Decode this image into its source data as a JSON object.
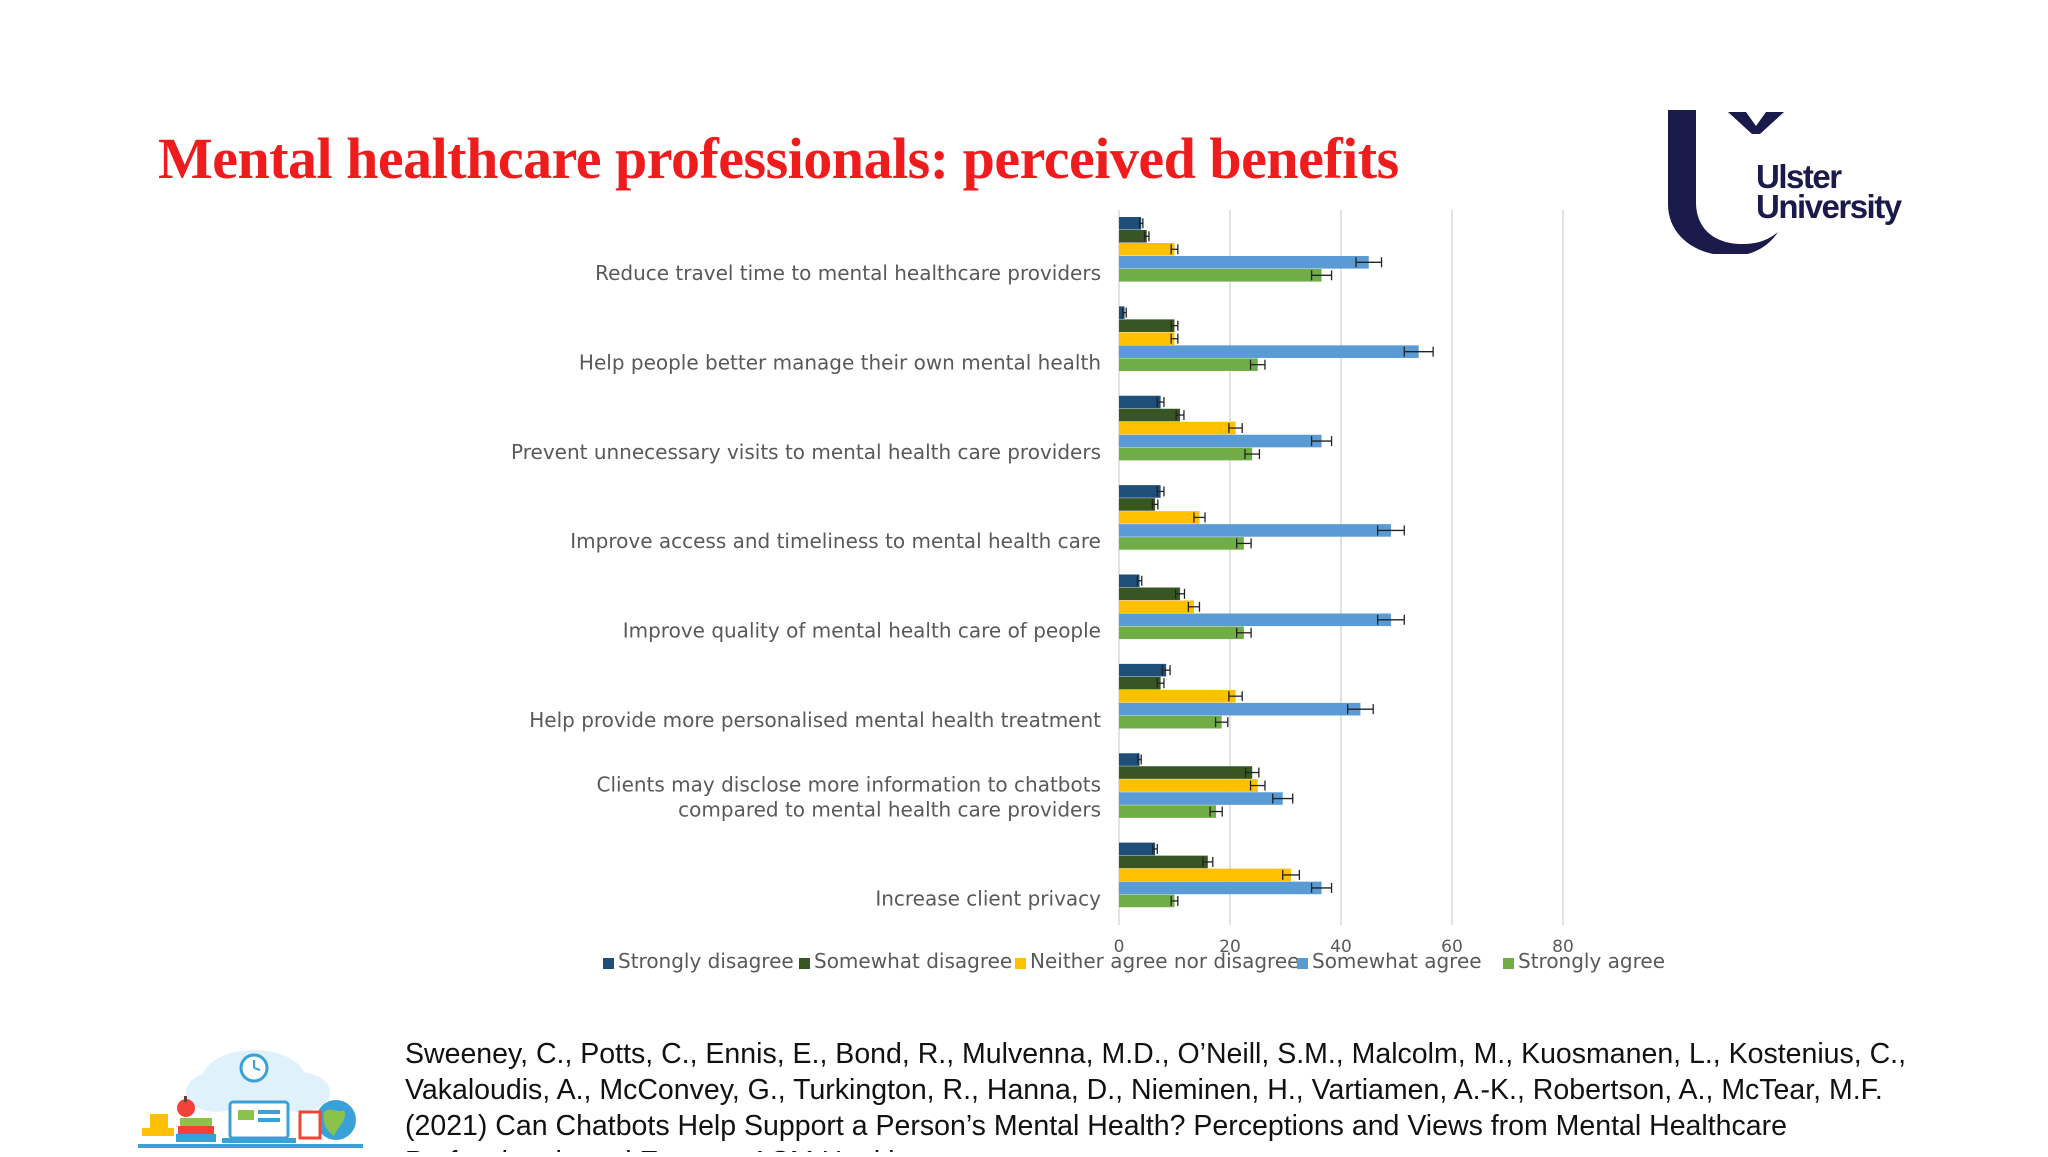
{
  "slide": {
    "title": "Mental healthcare professionals: perceived benefits",
    "logo": {
      "line1": "Ulster",
      "line2": "University"
    },
    "citation": "Sweeney, C., Potts, C., Ennis, E., Bond, R., Mulvenna, M.D., O’Neill, S.M., Malcolm, M., Kuosmanen, L., Kostenius, C.,\nVakaloudis, A., McConvey, G., Turkington, R., Hanna, D., Nieminen, H., Vartiamen, A.-K., Robertson, A., McTear, M.F.\n(2021) Can Chatbots Help Support a Person’s Mental Health? Perceptions and Views from Mental Healthcare\nProfessionals and Experts. ACM Health..."
  },
  "chart_data": {
    "type": "bar",
    "orientation": "horizontal",
    "title": "",
    "xlabel": "",
    "ylabel": "",
    "xlim": [
      0,
      80
    ],
    "xticks": [
      0,
      20,
      40,
      60,
      80
    ],
    "grid": true,
    "error_bars": true,
    "legend_position": "bottom",
    "categories": [
      "Reduce travel time to mental healthcare providers",
      "Help people better manage their own mental health",
      "Prevent unnecessary visits to mental health care providers",
      "Improve access and timeliness to mental health care",
      "Improve quality of mental health care of people",
      "Help provide more personalised mental health treatment",
      "Clients may disclose more information to chatbots compared to mental health care providers",
      "Increase client privacy"
    ],
    "category_lines": [
      [
        "Reduce travel time to mental healthcare providers"
      ],
      [
        "Help people better manage their own mental health"
      ],
      [
        "Prevent unnecessary visits to mental health care providers"
      ],
      [
        "Improve access and timeliness to mental health care"
      ],
      [
        "Improve quality of mental health care of people"
      ],
      [
        "Help provide more personalised mental health treatment"
      ],
      [
        "Clients may disclose more information to chatbots",
        "compared to mental health care providers"
      ],
      [
        "Increase client privacy"
      ]
    ],
    "series": [
      {
        "name": "Strongly disagree",
        "color": "#1f4e79",
        "values": [
          4,
          1,
          7.5,
          7.5,
          3.7,
          8.5,
          3.7,
          6.5
        ],
        "errors": [
          0.3,
          0.3,
          0.6,
          0.6,
          0.4,
          0.7,
          0.3,
          0.4
        ]
      },
      {
        "name": "Somewhat disagree",
        "color": "#375623",
        "values": [
          5,
          10,
          11,
          6.5,
          11,
          7.5,
          24,
          16
        ],
        "errors": [
          0.4,
          0.6,
          0.7,
          0.5,
          0.8,
          0.6,
          1.2,
          0.9
        ]
      },
      {
        "name": "Neither agree nor disagree",
        "color": "#ffc000",
        "values": [
          10,
          10,
          21,
          14.5,
          13.5,
          21,
          25,
          31
        ],
        "errors": [
          0.6,
          0.6,
          1.2,
          1.0,
          1.0,
          1.2,
          1.3,
          1.5
        ]
      },
      {
        "name": "Somewhat agree",
        "color": "#5b9bd5",
        "values": [
          45,
          54,
          36.5,
          49,
          49,
          43.5,
          29.5,
          36.5
        ],
        "errors": [
          2.3,
          2.6,
          1.8,
          2.4,
          2.4,
          2.3,
          1.8,
          1.8
        ]
      },
      {
        "name": "Strongly agree",
        "color": "#70ad47",
        "values": [
          36.5,
          25,
          24,
          22.5,
          22.5,
          18.5,
          17.5,
          10
        ],
        "errors": [
          1.8,
          1.3,
          1.3,
          1.3,
          1.3,
          1.1,
          1.1,
          0.6
        ]
      }
    ]
  },
  "palette": {
    "title_red": "#ee1c1c",
    "logo_navy": "#1a1a4b",
    "grid": "#d9d9d9",
    "axis_text": "#595959"
  }
}
